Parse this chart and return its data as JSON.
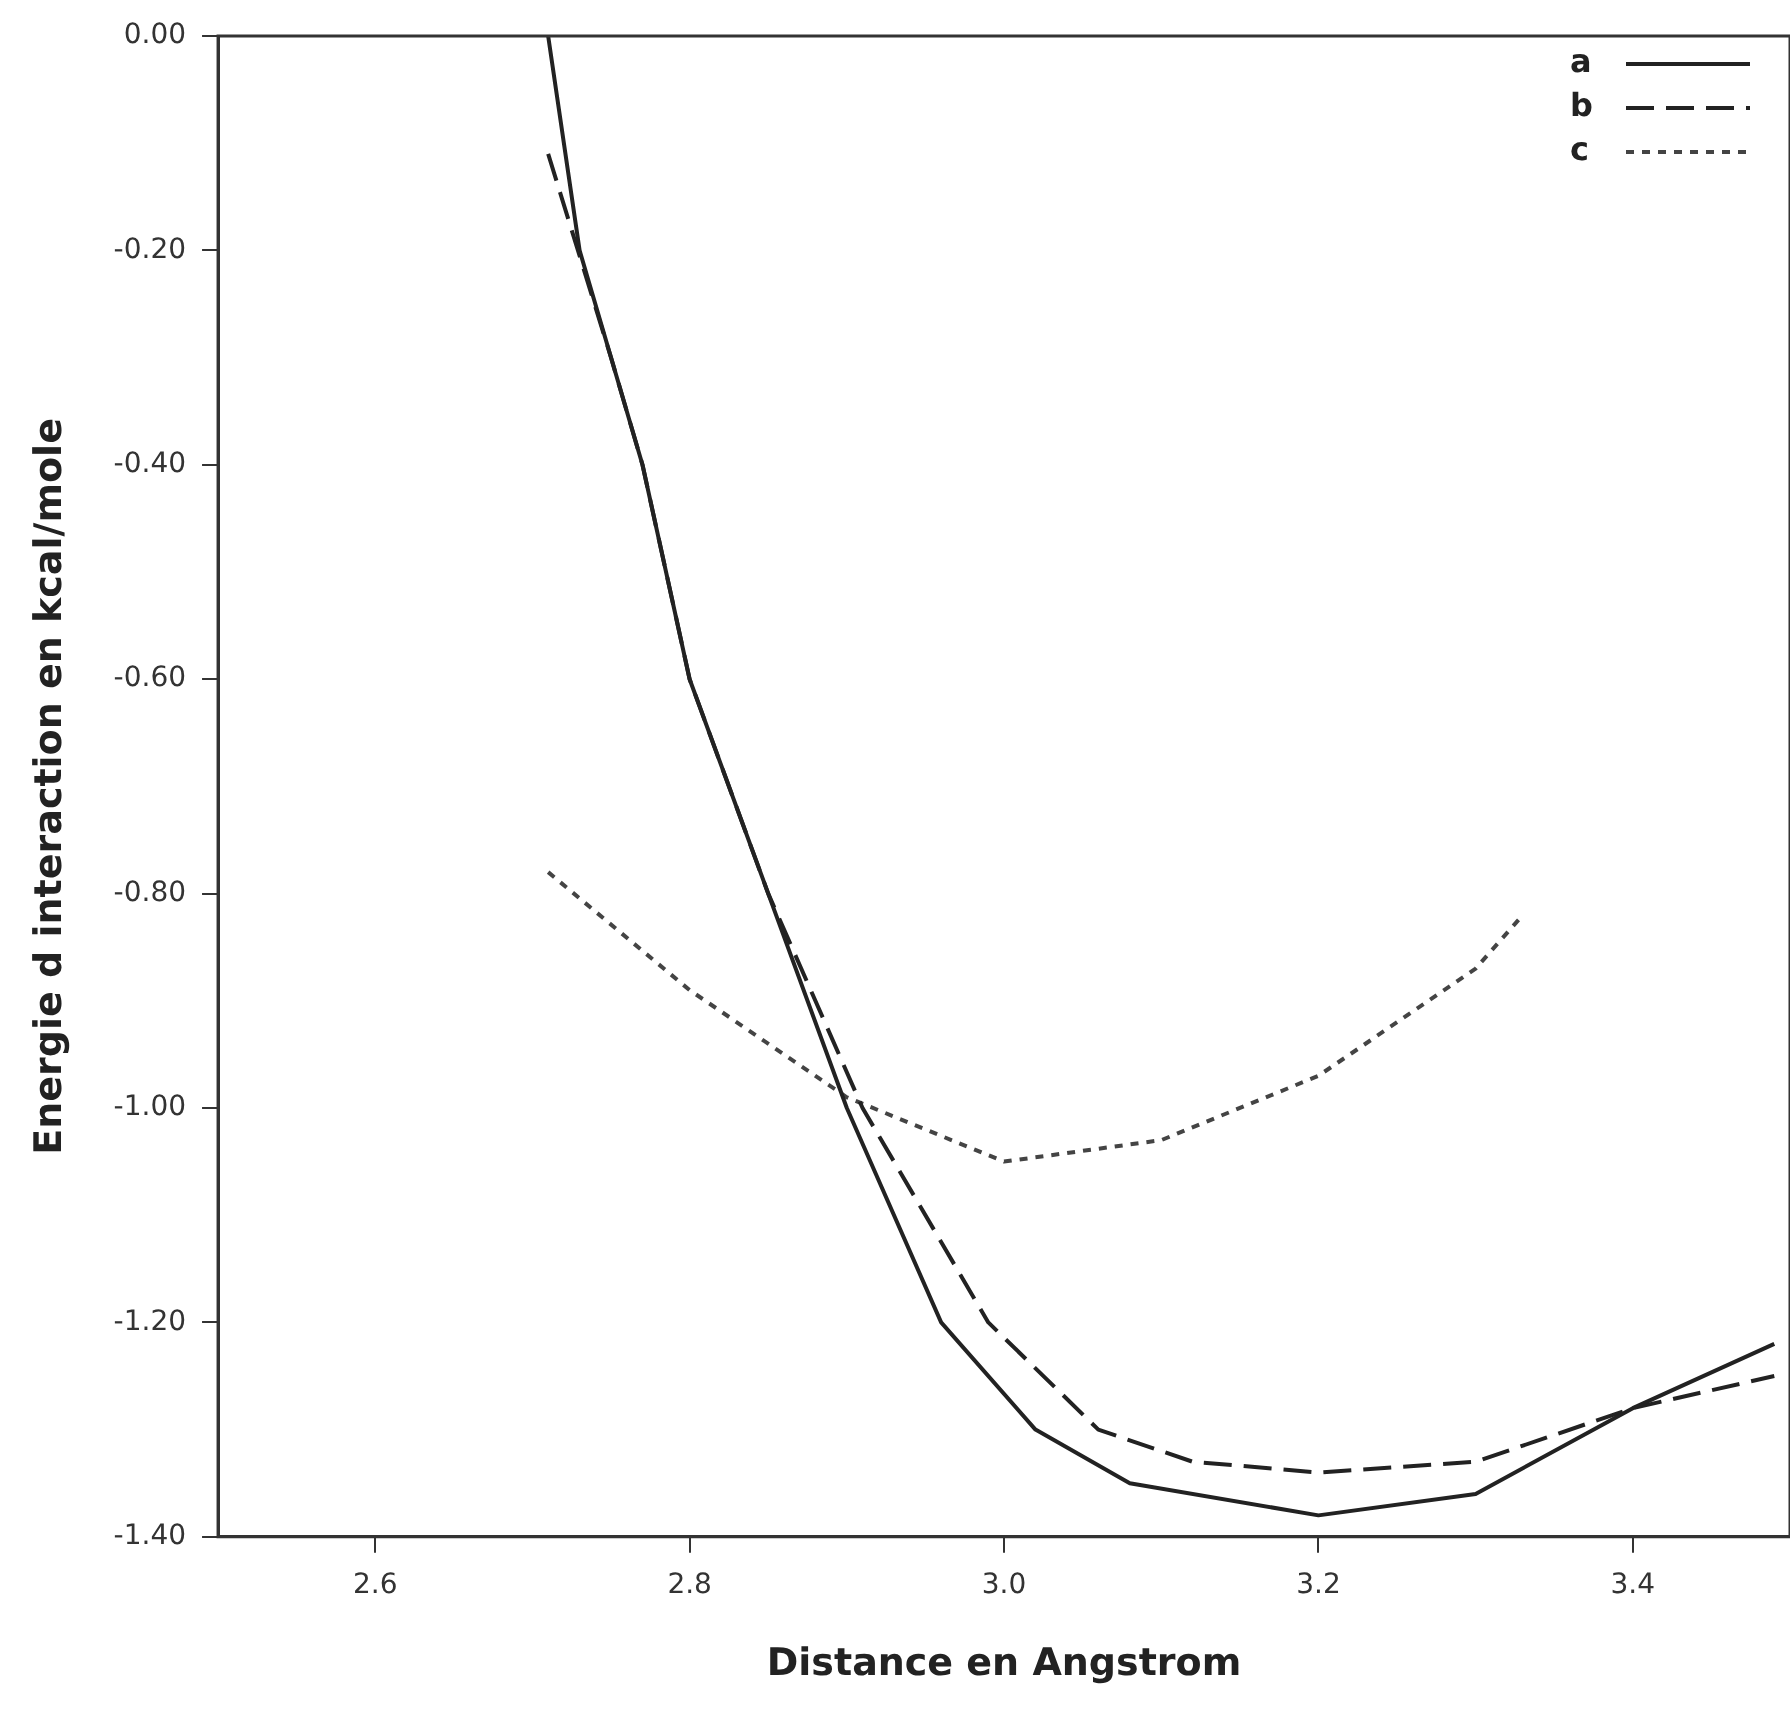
{
  "chart_data": {
    "type": "line",
    "xlabel": "Distance en Angstrom",
    "ylabel": "Energie d interaction en kcal/mole",
    "xlim": [
      2.5,
      3.5
    ],
    "ylim": [
      -1.4,
      0
    ],
    "xticks": [
      {
        "value": 2.6,
        "label": "2.6"
      },
      {
        "value": 2.8,
        "label": "2.8"
      },
      {
        "value": 3.0,
        "label": "3.0"
      },
      {
        "value": 3.2,
        "label": "3.2"
      },
      {
        "value": 3.4,
        "label": "3.4"
      }
    ],
    "yticks": [
      {
        "value": 0,
        "label": "0.00"
      },
      {
        "value": -0.2,
        "label": "-0.20"
      },
      {
        "value": -0.4,
        "label": "-0.40"
      },
      {
        "value": -0.6,
        "label": "-0.60"
      },
      {
        "value": -0.8,
        "label": "-0.80"
      },
      {
        "value": -1.0,
        "label": "-1.00"
      },
      {
        "value": -1.2,
        "label": "-1.20"
      },
      {
        "value": -1.4,
        "label": "-1.40"
      }
    ],
    "grid": false,
    "legend": "top right",
    "marker": "none",
    "series": [
      {
        "name": "a",
        "color": "#222222",
        "line_style": "solid",
        "x": [
          2.71,
          2.73,
          2.77,
          2.8,
          2.85,
          2.9,
          2.96,
          3.02,
          3.08,
          3.2,
          3.3,
          3.4,
          3.49
        ],
        "values": [
          0,
          -0.2,
          -0.4,
          -0.6,
          -0.8,
          -1.0,
          -1.2,
          -1.3,
          -1.35,
          -1.38,
          -1.36,
          -1.28,
          -1.22
        ]
      },
      {
        "name": "b",
        "color": "#222222",
        "line_style": "dashed",
        "x": [
          2.71,
          2.75,
          2.77,
          2.8,
          2.85,
          2.91,
          2.99,
          3.06,
          3.12,
          3.2,
          3.3,
          3.4,
          3.49
        ],
        "values": [
          -0.11,
          -0.3,
          -0.4,
          -0.6,
          -0.8,
          -1.0,
          -1.2,
          -1.3,
          -1.33,
          -1.34,
          -1.33,
          -1.28,
          -1.25
        ]
      },
      {
        "name": "c",
        "color": "#444444",
        "line_style": "dotted",
        "x": [
          2.71,
          2.8,
          2.9,
          3.0,
          3.1,
          3.2,
          3.3,
          3.33
        ],
        "values": [
          -0.78,
          -0.89,
          -0.99,
          -1.05,
          -1.03,
          -0.97,
          -0.87,
          -0.82
        ]
      }
    ]
  }
}
